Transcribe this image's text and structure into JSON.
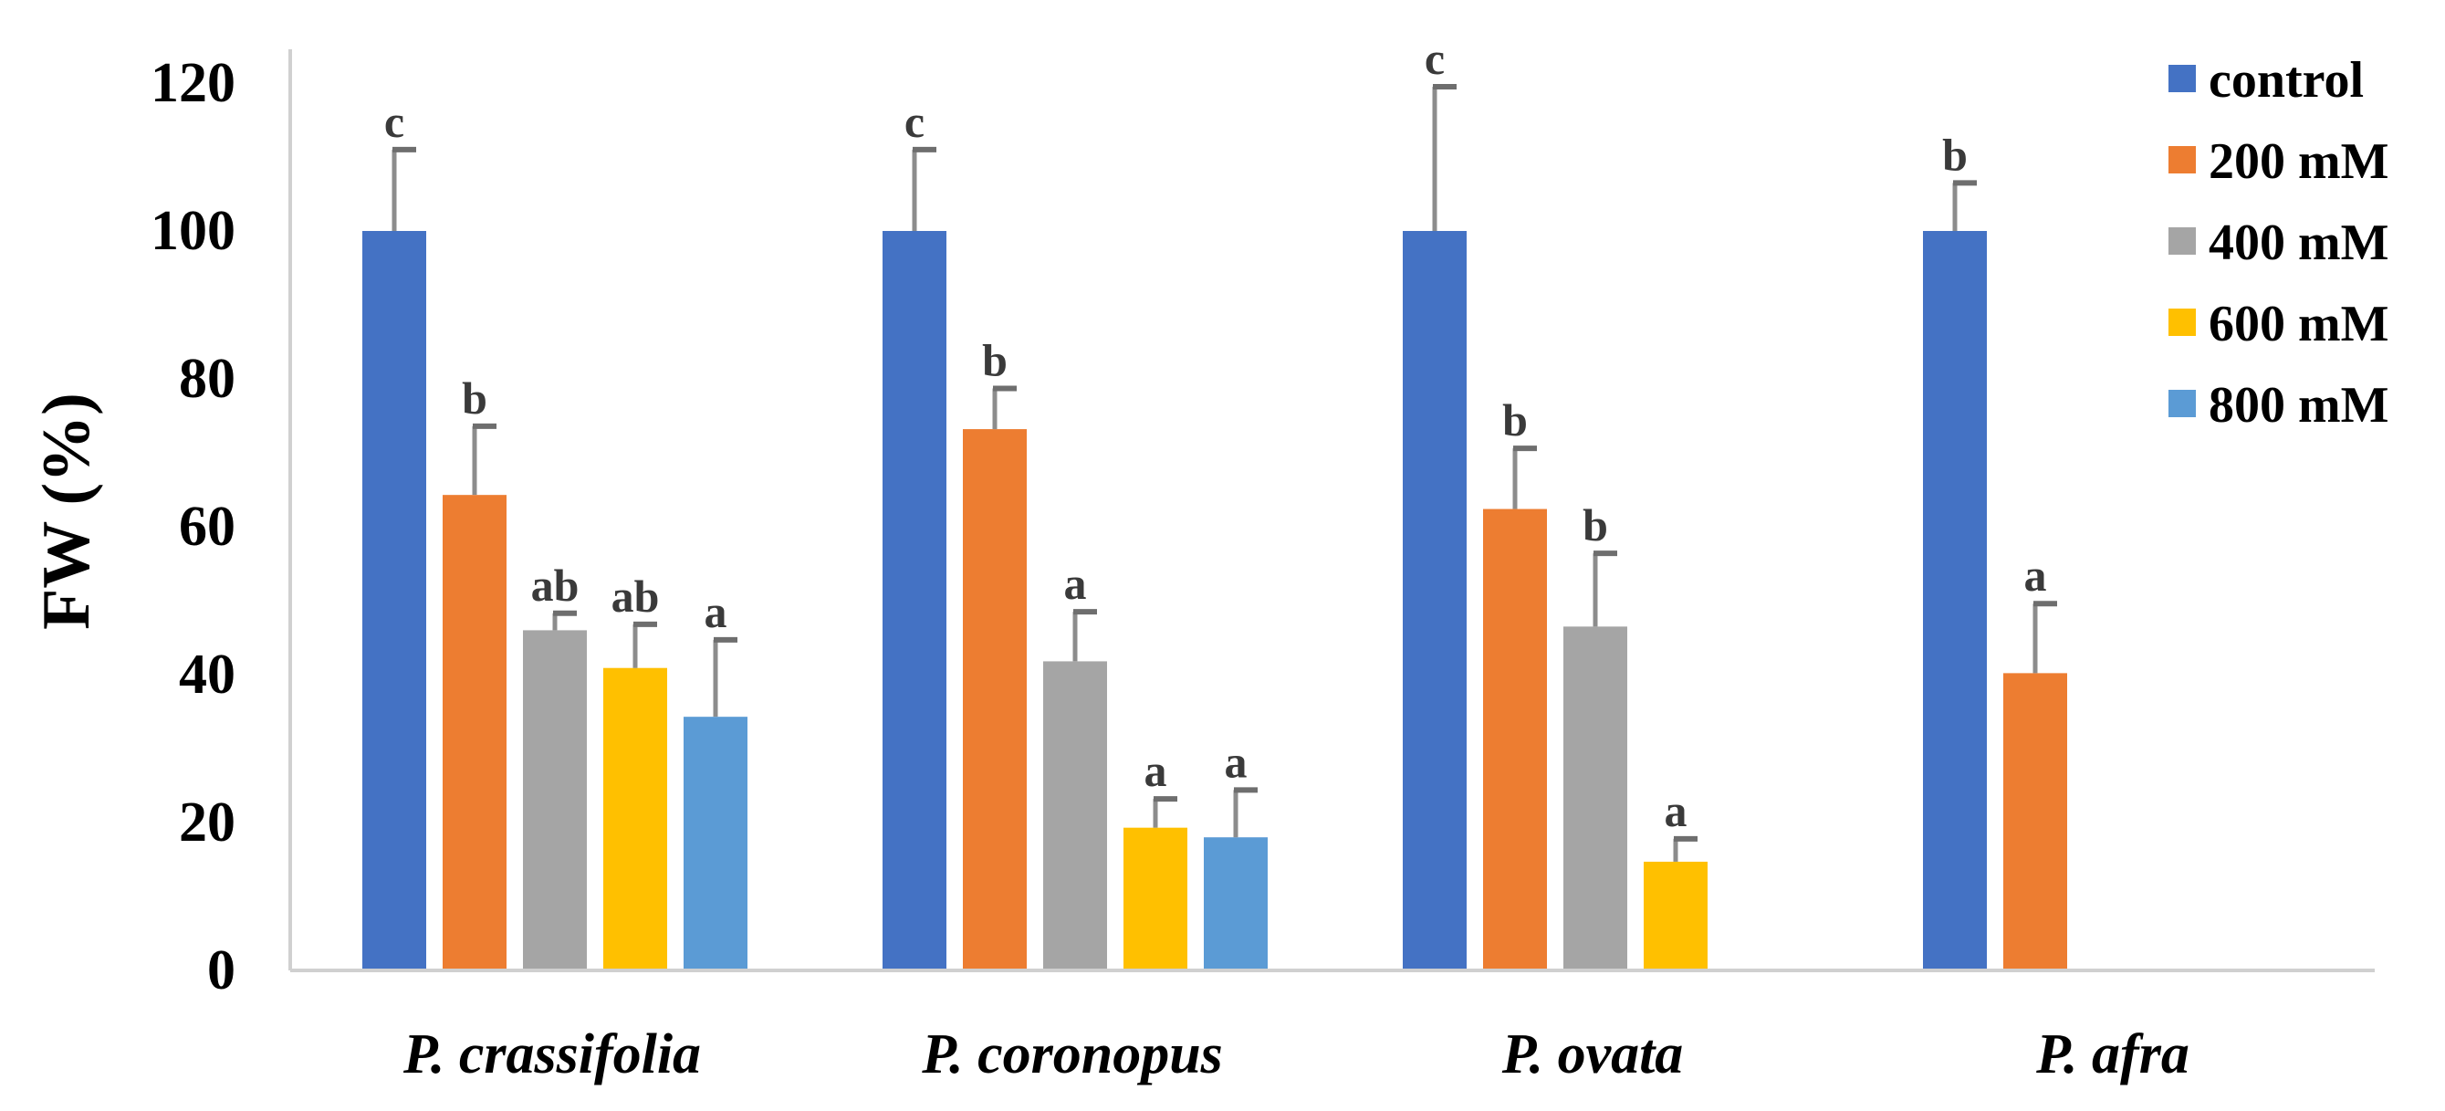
{
  "chart_data": {
    "type": "bar",
    "title": "",
    "xlabel": "",
    "ylabel": "FW (%)",
    "ylim": [
      0,
      120
    ],
    "yticks": [
      "0",
      "20",
      "40",
      "60",
      "80",
      "100",
      "120"
    ],
    "grid": false,
    "legend_position": "top-right",
    "categories": [
      "P. crassifolia",
      "P. coronopus",
      "P. ovata",
      "P. afra"
    ],
    "series": [
      {
        "name": "control",
        "color": "#4472C4",
        "values": [
          100,
          100,
          100,
          100
        ],
        "errors": [
          11,
          11,
          19.5,
          6.5
        ],
        "letters": [
          "c",
          "c",
          "c",
          "b"
        ]
      },
      {
        "name": "200 mM",
        "color": "#ED7D31",
        "values": [
          64.3,
          73.2,
          62.4,
          40.2
        ],
        "errors": [
          9.3,
          5.5,
          8.2,
          9.4
        ],
        "letters": [
          "b",
          "b",
          "b",
          "a"
        ]
      },
      {
        "name": "400 mM",
        "color": "#A5A5A5",
        "values": [
          46,
          41.8,
          46.5,
          null
        ],
        "errors": [
          2.3,
          6.7,
          9.9,
          null
        ],
        "letters": [
          "ab",
          "a",
          "b",
          ""
        ]
      },
      {
        "name": "600 mM",
        "color": "#FFC000",
        "values": [
          40.9,
          19.3,
          14.7,
          null
        ],
        "errors": [
          5.9,
          3.9,
          3.1,
          null
        ],
        "letters": [
          "ab",
          "a",
          "a",
          ""
        ]
      },
      {
        "name": "800 mM",
        "color": "#5B9BD5",
        "values": [
          34.3,
          18,
          null,
          null
        ],
        "errors": [
          10.4,
          6.4,
          null,
          null
        ],
        "letters": [
          "a",
          "a",
          "",
          ""
        ]
      }
    ]
  }
}
